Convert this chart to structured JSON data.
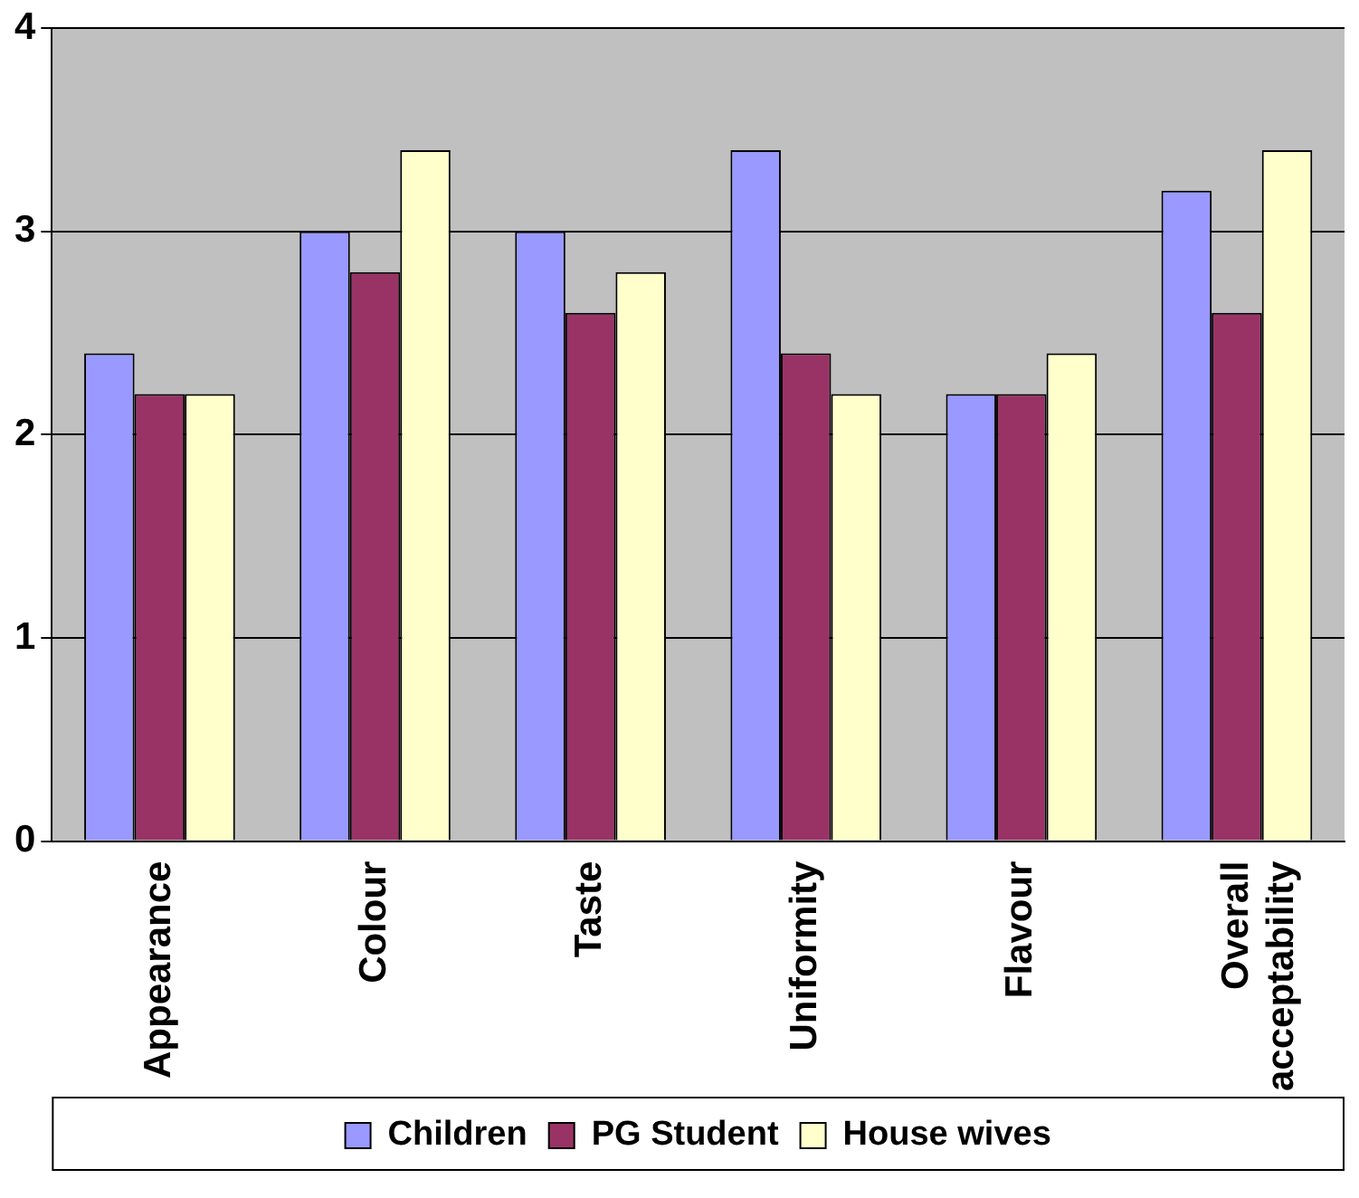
{
  "chart_data": {
    "type": "bar",
    "categories": [
      "Appearance",
      "Colour",
      "Taste",
      "Uniformity",
      "Flavour",
      "Overall acceptability"
    ],
    "series": [
      {
        "name": "Children",
        "color": "#9999ff",
        "values": [
          2.4,
          3.0,
          3.0,
          3.4,
          2.2,
          3.2
        ]
      },
      {
        "name": "PG Student",
        "color": "#993366",
        "values": [
          2.2,
          2.8,
          2.6,
          2.4,
          2.2,
          2.6
        ]
      },
      {
        "name": "House wives",
        "color": "#ffffcc",
        "values": [
          2.2,
          3.4,
          2.8,
          2.2,
          2.4,
          3.4
        ]
      }
    ],
    "ylim": [
      0,
      4
    ],
    "yticks": [
      0,
      1,
      2,
      3,
      4
    ],
    "grid": "y",
    "legend": "bottom"
  }
}
